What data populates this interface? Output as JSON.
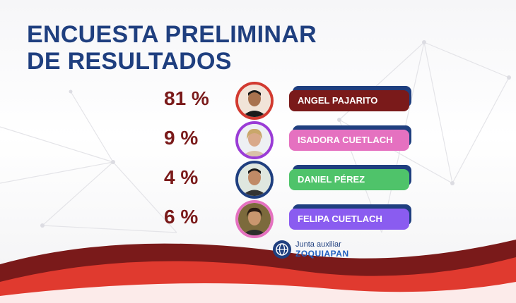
{
  "title": {
    "line1": "ENCUESTA PRELIMINAR",
    "line2": "DE RESULTADOS"
  },
  "candidates": [
    {
      "percent": "81 %",
      "value": 81,
      "name": "ANGEL PAJARITO",
      "pill_color": "#7a1a1a",
      "ring_color": "#d23a30",
      "shirt_color": "#1b1b1b"
    },
    {
      "percent": "9 %",
      "value": 9,
      "name": "ISADORA CUETLACH",
      "pill_color": "#e571c0",
      "ring_color": "#9a3cd6",
      "shirt_color": "#d9c2a8"
    },
    {
      "percent": "4 %",
      "value": 4,
      "name": "DANIEL PÉREZ",
      "pill_color": "#4fc36a",
      "ring_color": "#1f3f7f",
      "shirt_color": "#333333"
    },
    {
      "percent": "6 %",
      "value": 6,
      "name": "FELIPA CUETLACH",
      "pill_color": "#8a5cf0",
      "ring_color": "#e571c0",
      "shirt_color": "#2c2c2c"
    }
  ],
  "brand": {
    "line1": "Junta auxiliar",
    "line2": "ZOQUIAPAN",
    "icon": "globe-icon"
  },
  "colors": {
    "title": "#1f3f7f",
    "percent": "#7a1a1a",
    "wave_dark": "#7a1a1a",
    "wave_red": "#e03a2f",
    "pill_shadow": "#1f3f7f"
  }
}
